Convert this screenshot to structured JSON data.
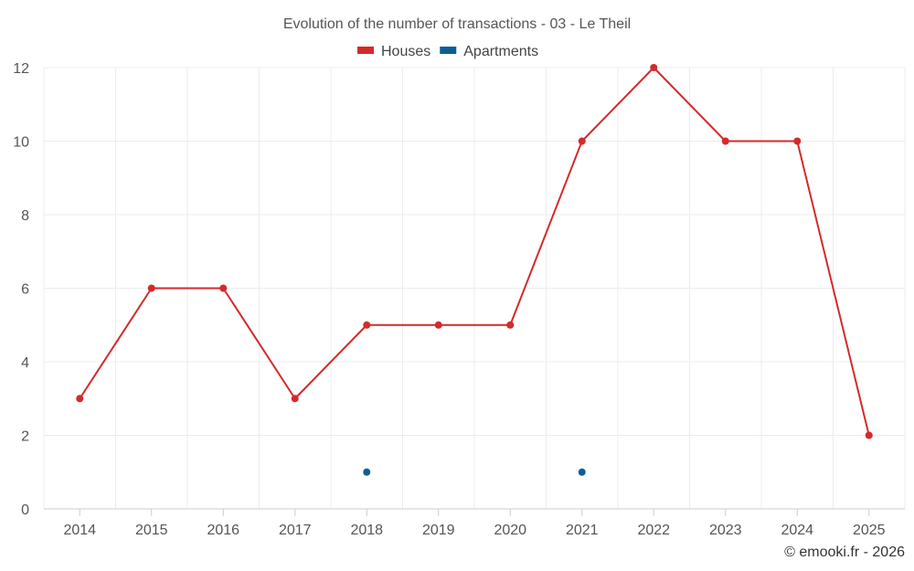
{
  "chart_data": {
    "type": "line",
    "title": "Evolution of the number of transactions - 03 - Le Theil",
    "categories": [
      "2014",
      "2015",
      "2016",
      "2017",
      "2018",
      "2019",
      "2020",
      "2021",
      "2022",
      "2023",
      "2024",
      "2025"
    ],
    "series": [
      {
        "name": "Houses",
        "color": "#d42a2a",
        "style": "line-with-markers",
        "values": [
          3,
          6,
          6,
          3,
          5,
          5,
          5,
          10,
          12,
          10,
          10,
          2
        ]
      },
      {
        "name": "Apartments",
        "color": "#0a5f96",
        "style": "markers-only",
        "values": [
          null,
          null,
          null,
          null,
          1,
          null,
          null,
          1,
          null,
          null,
          null,
          null
        ]
      }
    ],
    "ylim": [
      0,
      12
    ],
    "yticks": [
      0,
      2,
      4,
      6,
      8,
      10,
      12
    ],
    "xlabel": "",
    "ylabel": "",
    "grid": true,
    "legend_position": "top-center"
  },
  "credit": "© emooki.fr - 2026"
}
